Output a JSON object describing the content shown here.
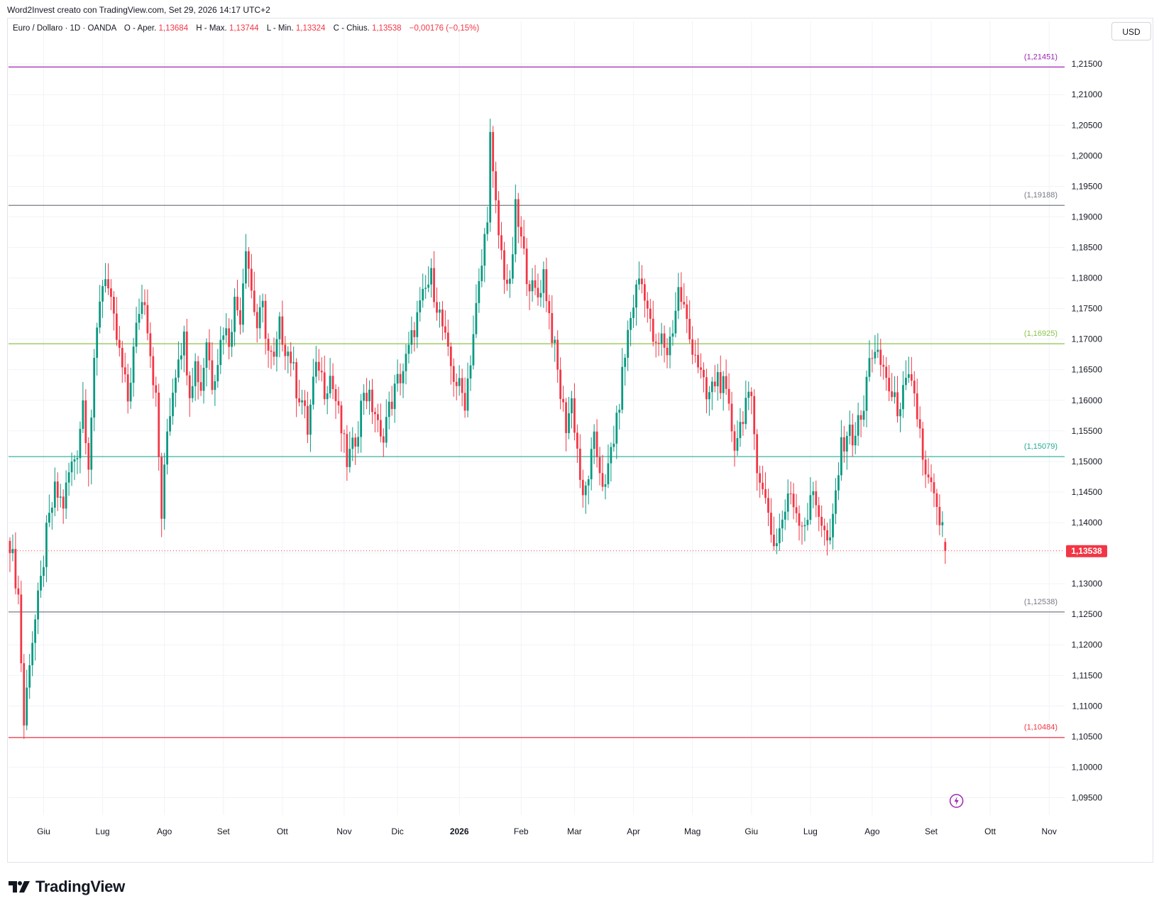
{
  "header": {
    "attribution": "Word2Invest creato con TradingView.com, Set 29, 2026 14:17 UTC+2"
  },
  "legend": {
    "symbol": "Euro / Dollaro · 1D · OANDA",
    "open_label": "O - Aper.",
    "open_value": "1,13684",
    "high_label": "H - Max.",
    "high_value": "1,13744",
    "low_label": "L - Min.",
    "low_value": "1,13324",
    "close_label": "C - Chius.",
    "close_value": "1,13538",
    "change": "−0,00176 (−0,15%)"
  },
  "currency_button": "USD",
  "brand": {
    "name": "TradingView",
    "icon": "tradingview-logo-icon"
  },
  "flash_icon": "lightning-circle-icon",
  "colors": {
    "up": "#089981",
    "down": "#f23645",
    "grid": "#f0f3fa",
    "price_tag": "#f23645"
  },
  "chart_data": {
    "type": "candlestick",
    "symbol": "EUR/USD",
    "interval": "1D",
    "ylim": [
      1.0925,
      1.2185
    ],
    "y_ticks": [
      "1,21500",
      "1,21000",
      "1,20500",
      "1,20000",
      "1,19500",
      "1,19000",
      "1,18500",
      "1,18000",
      "1,17500",
      "1,17000",
      "1,16500",
      "1,16000",
      "1,15500",
      "1,15000",
      "1,14500",
      "1,14000",
      "1,13500",
      "1,13000",
      "1,12500",
      "1,12000",
      "1,11500",
      "1,11000",
      "1,10500",
      "1,10000",
      "1,09500"
    ],
    "x_labels": [
      {
        "label": "Giu",
        "bar": 12,
        "bold": false
      },
      {
        "label": "Lug",
        "bar": 33,
        "bold": false
      },
      {
        "label": "Ago",
        "bar": 55,
        "bold": false
      },
      {
        "label": "Set",
        "bar": 76,
        "bold": false
      },
      {
        "label": "Ott",
        "bar": 97,
        "bold": false
      },
      {
        "label": "Nov",
        "bar": 119,
        "bold": false
      },
      {
        "label": "Dic",
        "bar": 138,
        "bold": false
      },
      {
        "label": "2026",
        "bar": 160,
        "bold": true
      },
      {
        "label": "Feb",
        "bar": 182,
        "bold": false
      },
      {
        "label": "Mar",
        "bar": 201,
        "bold": false
      },
      {
        "label": "Apr",
        "bar": 222,
        "bold": false
      },
      {
        "label": "Mag",
        "bar": 243,
        "bold": false
      },
      {
        "label": "Giu",
        "bar": 264,
        "bold": false
      },
      {
        "label": "Lug",
        "bar": 285,
        "bold": false
      },
      {
        "label": "Ago",
        "bar": 307,
        "bold": false
      },
      {
        "label": "Set",
        "bar": 328,
        "bold": false
      },
      {
        "label": "Ott",
        "bar": 349,
        "bold": false
      },
      {
        "label": "Nov",
        "bar": 370,
        "bold": false
      }
    ],
    "horizontal_levels": [
      {
        "value": 1.21451,
        "label": "(1,21451)",
        "color": "#9c27b0"
      },
      {
        "value": 1.19188,
        "label": "(1,19188)",
        "color": "#787b86"
      },
      {
        "value": 1.16925,
        "label": "(1,16925)",
        "color": "#8bc34a"
      },
      {
        "value": 1.15079,
        "label": "(1,15079)",
        "color": "#22ab94"
      },
      {
        "value": 1.12538,
        "label": "(1,12538)",
        "color": "#787b86"
      },
      {
        "value": 1.10484,
        "label": "(1,10484)",
        "color": "#f23645"
      }
    ],
    "last_price": {
      "value": 1.13538,
      "label": "1,13538"
    },
    "close_path": [
      [
        0,
        1.137
      ],
      [
        3,
        1.128
      ],
      [
        5,
        1.107
      ],
      [
        7,
        1.118
      ],
      [
        9,
        1.124
      ],
      [
        11,
        1.13
      ],
      [
        13,
        1.138
      ],
      [
        16,
        1.145
      ],
      [
        19,
        1.143
      ],
      [
        21,
        1.148
      ],
      [
        24,
        1.152
      ],
      [
        26,
        1.16
      ],
      [
        28,
        1.15
      ],
      [
        30,
        1.165
      ],
      [
        32,
        1.177
      ],
      [
        34,
        1.181
      ],
      [
        36,
        1.175
      ],
      [
        38,
        1.17
      ],
      [
        40,
        1.165
      ],
      [
        42,
        1.16
      ],
      [
        44,
        1.168
      ],
      [
        46,
        1.175
      ],
      [
        48,
        1.177
      ],
      [
        50,
        1.168
      ],
      [
        52,
        1.16
      ],
      [
        54,
        1.141
      ],
      [
        56,
        1.155
      ],
      [
        58,
        1.162
      ],
      [
        60,
        1.168
      ],
      [
        62,
        1.17
      ],
      [
        64,
        1.162
      ],
      [
        66,
        1.166
      ],
      [
        68,
        1.162
      ],
      [
        70,
        1.17
      ],
      [
        72,
        1.163
      ],
      [
        74,
        1.167
      ],
      [
        76,
        1.172
      ],
      [
        78,
        1.17
      ],
      [
        80,
        1.176
      ],
      [
        82,
        1.174
      ],
      [
        84,
        1.186
      ],
      [
        86,
        1.178
      ],
      [
        88,
        1.172
      ],
      [
        90,
        1.175
      ],
      [
        92,
        1.168
      ],
      [
        94,
        1.166
      ],
      [
        96,
        1.172
      ],
      [
        98,
        1.169
      ],
      [
        100,
        1.167
      ],
      [
        102,
        1.162
      ],
      [
        104,
        1.16
      ],
      [
        106,
        1.155
      ],
      [
        108,
        1.163
      ],
      [
        110,
        1.166
      ],
      [
        112,
        1.162
      ],
      [
        114,
        1.164
      ],
      [
        116,
        1.16
      ],
      [
        118,
        1.155
      ],
      [
        120,
        1.15
      ],
      [
        122,
        1.152
      ],
      [
        124,
        1.156
      ],
      [
        126,
        1.162
      ],
      [
        128,
        1.16
      ],
      [
        130,
        1.158
      ],
      [
        132,
        1.153
      ],
      [
        134,
        1.157
      ],
      [
        136,
        1.16
      ],
      [
        138,
        1.163
      ],
      [
        140,
        1.165
      ],
      [
        142,
        1.168
      ],
      [
        144,
        1.172
      ],
      [
        146,
        1.175
      ],
      [
        148,
        1.178
      ],
      [
        150,
        1.18
      ],
      [
        152,
        1.176
      ],
      [
        154,
        1.172
      ],
      [
        156,
        1.167
      ],
      [
        158,
        1.164
      ],
      [
        160,
        1.162
      ],
      [
        162,
        1.16
      ],
      [
        164,
        1.167
      ],
      [
        166,
        1.175
      ],
      [
        168,
        1.182
      ],
      [
        170,
        1.191
      ],
      [
        171,
        1.203
      ],
      [
        172,
        1.196
      ],
      [
        174,
        1.187
      ],
      [
        176,
        1.181
      ],
      [
        178,
        1.178
      ],
      [
        180,
        1.191
      ],
      [
        182,
        1.186
      ],
      [
        184,
        1.181
      ],
      [
        186,
        1.178
      ],
      [
        188,
        1.177
      ],
      [
        190,
        1.181
      ],
      [
        192,
        1.174
      ],
      [
        194,
        1.168
      ],
      [
        196,
        1.161
      ],
      [
        198,
        1.156
      ],
      [
        200,
        1.16
      ],
      [
        202,
        1.152
      ],
      [
        204,
        1.143
      ],
      [
        206,
        1.148
      ],
      [
        208,
        1.153
      ],
      [
        210,
        1.149
      ],
      [
        212,
        1.145
      ],
      [
        214,
        1.152
      ],
      [
        216,
        1.156
      ],
      [
        218,
        1.164
      ],
      [
        220,
        1.171
      ],
      [
        222,
        1.176
      ],
      [
        224,
        1.18
      ],
      [
        226,
        1.178
      ],
      [
        228,
        1.172
      ],
      [
        230,
        1.168
      ],
      [
        232,
        1.17
      ],
      [
        234,
        1.168
      ],
      [
        236,
        1.172
      ],
      [
        238,
        1.178
      ],
      [
        240,
        1.175
      ],
      [
        242,
        1.17
      ],
      [
        244,
        1.168
      ],
      [
        246,
        1.164
      ],
      [
        248,
        1.16
      ],
      [
        250,
        1.162
      ],
      [
        252,
        1.164
      ],
      [
        254,
        1.162
      ],
      [
        256,
        1.158
      ],
      [
        258,
        1.153
      ],
      [
        260,
        1.156
      ],
      [
        262,
        1.16
      ],
      [
        264,
        1.159
      ],
      [
        266,
        1.15
      ],
      [
        268,
        1.145
      ],
      [
        270,
        1.142
      ],
      [
        272,
        1.136
      ],
      [
        274,
        1.139
      ],
      [
        276,
        1.142
      ],
      [
        278,
        1.145
      ],
      [
        280,
        1.142
      ],
      [
        282,
        1.14
      ],
      [
        284,
        1.141
      ],
      [
        286,
        1.145
      ],
      [
        288,
        1.142
      ],
      [
        290,
        1.138
      ],
      [
        292,
        1.136
      ],
      [
        294,
        1.145
      ],
      [
        296,
        1.152
      ],
      [
        298,
        1.155
      ],
      [
        300,
        1.154
      ],
      [
        302,
        1.156
      ],
      [
        304,
        1.158
      ],
      [
        306,
        1.168
      ],
      [
        308,
        1.167
      ],
      [
        310,
        1.166
      ],
      [
        312,
        1.164
      ],
      [
        314,
        1.16
      ],
      [
        316,
        1.159
      ],
      [
        318,
        1.161
      ],
      [
        320,
        1.163
      ],
      [
        322,
        1.16
      ],
      [
        324,
        1.155
      ],
      [
        326,
        1.147
      ],
      [
        328,
        1.146
      ],
      [
        330,
        1.141
      ],
      [
        332,
        1.139
      ],
      [
        333,
        1.13538
      ]
    ],
    "last_bar": {
      "open": 1.13684,
      "high": 1.13744,
      "low": 1.13324,
      "close": 1.13538
    },
    "num_bars": 334,
    "x_slots": 376
  }
}
